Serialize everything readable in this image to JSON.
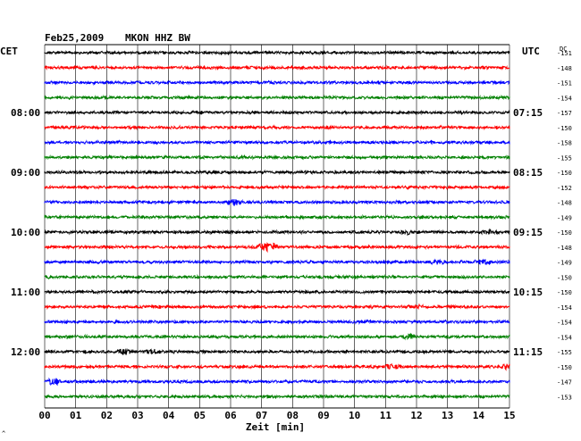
{
  "header": {
    "date": "Feb25,2009",
    "station": "MKON HHZ BW",
    "left_tz": "CET",
    "right_tz": "UTC",
    "dc_label": "DC"
  },
  "footer": {
    "xlabel": "Zeit [min]",
    "corner_mark": "^"
  },
  "colors": {
    "trace_cycle": [
      "#000000",
      "#ff0000",
      "#0000ff",
      "#008000"
    ],
    "grid": "#000000",
    "background": "#ffffff"
  },
  "chart_data": {
    "type": "line",
    "title": "Feb25,2009 MKON HHZ BW",
    "xlabel": "Zeit [min]",
    "x_ticks": [
      "00",
      "01",
      "02",
      "03",
      "04",
      "05",
      "06",
      "07",
      "08",
      "09",
      "10",
      "11",
      "12",
      "13",
      "14",
      "15"
    ],
    "xlim": [
      0,
      15
    ],
    "traces_count": 24,
    "left_time_labels": [
      {
        "trace": 4,
        "label": "08:00"
      },
      {
        "trace": 8,
        "label": "09:00"
      },
      {
        "trace": 12,
        "label": "10:00"
      },
      {
        "trace": 16,
        "label": "11:00"
      },
      {
        "trace": 20,
        "label": "12:00"
      }
    ],
    "right_time_labels": [
      {
        "trace": 4,
        "label": "07:15"
      },
      {
        "trace": 8,
        "label": "08:15"
      },
      {
        "trace": 12,
        "label": "09:15"
      },
      {
        "trace": 16,
        "label": "10:15"
      },
      {
        "trace": 20,
        "label": "11:15"
      }
    ],
    "dc_offsets": [
      -151,
      -148,
      -151,
      -154,
      -157,
      -150,
      -158,
      -155,
      -150,
      -152,
      -148,
      -149,
      -150,
      -148,
      -149,
      -150,
      -150,
      -154,
      -154,
      -154,
      -155,
      -150,
      -147,
      -153
    ],
    "events": [
      {
        "trace": 10,
        "minute": 6.1,
        "strength": 3
      },
      {
        "trace": 12,
        "minute": 11.7,
        "strength": 2
      },
      {
        "trace": 12,
        "minute": 14.4,
        "strength": 2
      },
      {
        "trace": 13,
        "minute": 7.3,
        "strength": 4
      },
      {
        "trace": 13,
        "minute": 7.0,
        "strength": 3
      },
      {
        "trace": 14,
        "minute": 12.7,
        "strength": 2
      },
      {
        "trace": 14,
        "minute": 14.2,
        "strength": 2
      },
      {
        "trace": 17,
        "minute": 12.0,
        "strength": 2
      },
      {
        "trace": 19,
        "minute": 11.8,
        "strength": 2
      },
      {
        "trace": 20,
        "minute": 2.6,
        "strength": 3
      },
      {
        "trace": 20,
        "minute": 3.5,
        "strength": 2
      },
      {
        "trace": 21,
        "minute": 11.2,
        "strength": 2
      },
      {
        "trace": 21,
        "minute": 14.9,
        "strength": 2
      },
      {
        "trace": 22,
        "minute": 0.3,
        "strength": 3
      }
    ]
  }
}
